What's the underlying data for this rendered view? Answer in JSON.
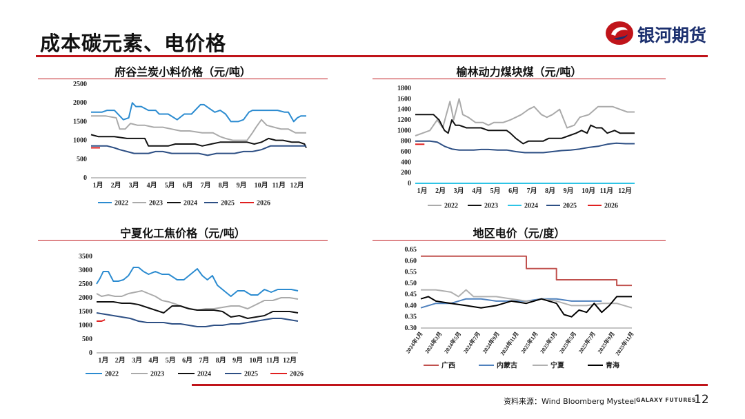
{
  "slide": {
    "title": "成本碳元素、电价格",
    "page_number": "12",
    "source": "资料来源：Wind Bloomberg Mysteel",
    "brand_en": "GALAXY FUTURES"
  },
  "logo": {
    "text": "银河期货"
  },
  "colors": {
    "accent": "#c0141a",
    "brand": "#1b2f6e",
    "s2022": "#2b8bd0",
    "s2023": "#aaaaaa",
    "s2024": "#111111",
    "s2025": "#2d4f84",
    "s2026": "#e02020",
    "s2024_cyan": "#2ec4e6",
    "guangxi": "#c0504d",
    "neimenggu": "#4f81bd",
    "ningxia": "#b0b0b0",
    "qinghai": "#000000"
  },
  "chart_data": [
    {
      "id": "fugu",
      "type": "line",
      "title": "府谷兰炭小料价格（元/吨）",
      "categories": [
        "1月",
        "2月",
        "3月",
        "4月",
        "5月",
        "6月",
        "7月",
        "8月",
        "9月",
        "10月",
        "11月",
        "12月"
      ],
      "ylim": [
        0,
        2500
      ],
      "yticks": [
        0,
        500,
        1000,
        1500,
        2000,
        2500
      ],
      "series": [
        {
          "name": "2022",
          "color_key": "s2022",
          "x": [
            0,
            0.6,
            0.9,
            1.3,
            1.8,
            2.1,
            2.3,
            2.5,
            2.8,
            3.2,
            3.6,
            3.8,
            4.3,
            4.8,
            5.2,
            5.6,
            6.1,
            6.3,
            6.6,
            6.9,
            7.2,
            7.5,
            7.8,
            8.2,
            8.5,
            8.8,
            9.0,
            9.3,
            9.6,
            10.0,
            10.4,
            10.8,
            11.0,
            11.3,
            11.5,
            11.7,
            11.9,
            12.0
          ],
          "values": [
            1750,
            1750,
            1800,
            1800,
            1550,
            1600,
            2000,
            1900,
            1900,
            1800,
            1800,
            1700,
            1700,
            1550,
            1700,
            1700,
            1950,
            1950,
            1850,
            1750,
            1800,
            1700,
            1500,
            1500,
            1550,
            1750,
            1800,
            1800,
            1800,
            1800,
            1800,
            1750,
            1750,
            1500,
            1600,
            1650,
            1650,
            1650
          ]
        },
        {
          "name": "2023",
          "color_key": "s2023",
          "x": [
            0,
            0.8,
            1.4,
            1.6,
            1.9,
            2.2,
            2.6,
            3.0,
            3.5,
            4.0,
            4.5,
            5.0,
            5.5,
            6.2,
            6.8,
            7.2,
            7.5,
            7.9,
            8.3,
            8.7,
            9.0,
            9.2,
            9.5,
            9.8,
            10.2,
            10.6,
            11.0,
            11.4,
            11.7,
            12.0
          ],
          "values": [
            1650,
            1650,
            1600,
            1300,
            1300,
            1450,
            1400,
            1400,
            1350,
            1350,
            1300,
            1250,
            1250,
            1200,
            1200,
            1100,
            1050,
            1000,
            1000,
            1000,
            1200,
            1350,
            1550,
            1400,
            1350,
            1300,
            1300,
            1200,
            1200,
            1200
          ]
        },
        {
          "name": "2024",
          "color_key": "s2024",
          "x": [
            0,
            0.4,
            0.8,
            1.3,
            2.0,
            2.5,
            3.0,
            3.2,
            3.6,
            4.3,
            4.7,
            5.0,
            5.4,
            5.8,
            6.2,
            6.7,
            7.2,
            7.7,
            8.2,
            8.7,
            9.1,
            9.5,
            9.9,
            10.3,
            10.7,
            11.2,
            11.6,
            11.9,
            12.0
          ],
          "values": [
            1150,
            1100,
            1100,
            1100,
            1050,
            1050,
            1050,
            850,
            850,
            850,
            900,
            900,
            900,
            900,
            850,
            900,
            950,
            950,
            950,
            950,
            900,
            950,
            1050,
            1000,
            1000,
            950,
            950,
            900,
            800
          ]
        },
        {
          "name": "2025",
          "color_key": "s2025",
          "x": [
            0,
            0.5,
            0.9,
            1.3,
            1.6,
            2.0,
            2.4,
            2.8,
            3.2,
            3.6,
            4.0,
            4.5,
            5.0,
            5.5,
            6.0,
            6.5,
            7.0,
            7.5,
            8.0,
            8.5,
            9.0,
            9.5,
            10.0,
            10.5,
            11.0,
            11.5,
            11.8,
            12.0
          ],
          "values": [
            850,
            850,
            850,
            800,
            750,
            700,
            650,
            650,
            650,
            700,
            700,
            650,
            650,
            650,
            650,
            600,
            650,
            650,
            650,
            700,
            700,
            750,
            850,
            850,
            850,
            850,
            850,
            850
          ]
        },
        {
          "name": "2026",
          "color_key": "s2026",
          "x": [
            0,
            0.5
          ],
          "values": [
            800,
            800
          ]
        }
      ]
    },
    {
      "id": "yulin",
      "type": "line",
      "title": "榆林动力煤块煤（元/吨）",
      "categories": [
        "1月",
        "2月",
        "3月",
        "4月",
        "5月",
        "6月",
        "7月",
        "8月",
        "9月",
        "10月",
        "11月",
        "12月"
      ],
      "ylim": [
        0,
        1800
      ],
      "yticks": [
        0,
        200,
        400,
        600,
        800,
        1000,
        1200,
        1400,
        1600,
        1800
      ],
      "series": [
        {
          "name": "2022",
          "color_key": "s2022_gray",
          "x": [
            0,
            0.4,
            0.8,
            1.2,
            1.5,
            1.7,
            1.9,
            2.1,
            2.4,
            2.6,
            2.9,
            3.3,
            3.7,
            4.0,
            4.3,
            4.8,
            5.2,
            5.5,
            5.8,
            6.2,
            6.5,
            6.9,
            7.2,
            7.5,
            7.9,
            8.3,
            8.7,
            9.0,
            9.5,
            10.0,
            10.4,
            10.8,
            11.2,
            11.6,
            12.0
          ],
          "values": [
            900,
            950,
            1000,
            1200,
            1050,
            1300,
            1550,
            1200,
            1600,
            1300,
            1250,
            1150,
            1150,
            1100,
            1150,
            1150,
            1200,
            1250,
            1300,
            1400,
            1450,
            1300,
            1250,
            1300,
            1400,
            1050,
            1100,
            1250,
            1300,
            1450,
            1450,
            1450,
            1400,
            1350,
            1350
          ]
        },
        {
          "name": "2023",
          "color_key": "s2024",
          "x": [
            0,
            0.4,
            0.8,
            1.0,
            1.3,
            1.6,
            1.8,
            2.0,
            2.2,
            2.4,
            2.8,
            3.2,
            3.6,
            4.0,
            4.5,
            5.0,
            5.2,
            5.5,
            5.9,
            6.2,
            6.5,
            6.8,
            7.0,
            7.3,
            7.6,
            8.0,
            8.4,
            8.8,
            9.1,
            9.4,
            9.6,
            9.9,
            10.2,
            10.5,
            10.9,
            11.2,
            11.6,
            12.0
          ],
          "values": [
            1300,
            1300,
            1300,
            1300,
            1200,
            1000,
            950,
            1200,
            1100,
            1100,
            1050,
            1050,
            1050,
            1000,
            1000,
            1000,
            950,
            850,
            750,
            800,
            800,
            800,
            800,
            850,
            850,
            850,
            900,
            950,
            1000,
            950,
            1100,
            1050,
            1050,
            950,
            1000,
            950,
            950,
            950
          ]
        },
        {
          "name": "2024",
          "color_key": "s2024_cyan",
          "x": [
            0,
            12
          ],
          "values": [
            0,
            0
          ]
        },
        {
          "name": "2025",
          "color_key": "s2025",
          "x": [
            0,
            0.4,
            0.8,
            1.2,
            1.6,
            2.0,
            2.4,
            2.8,
            3.2,
            3.6,
            4.0,
            4.5,
            5.0,
            5.5,
            6.0,
            6.5,
            7.0,
            7.5,
            8.0,
            8.5,
            9.0,
            9.5,
            10.0,
            10.5,
            11.0,
            11.5,
            12.0
          ],
          "values": [
            800,
            800,
            800,
            780,
            700,
            650,
            630,
            630,
            630,
            640,
            640,
            630,
            630,
            600,
            580,
            580,
            580,
            600,
            620,
            630,
            650,
            680,
            700,
            740,
            760,
            750,
            750
          ]
        },
        {
          "name": "2026",
          "color_key": "s2026",
          "x": [
            0,
            0.5
          ],
          "values": [
            740,
            740
          ]
        }
      ]
    },
    {
      "id": "ningxia_coke",
      "type": "line",
      "title": "宁夏化工焦价格（元/吨）",
      "categories": [
        "1月",
        "2月",
        "3月",
        "4月",
        "5月",
        "6月",
        "7月",
        "8月",
        "9月",
        "10月",
        "11月",
        "12月"
      ],
      "ylim": [
        0,
        3500
      ],
      "yticks": [
        0,
        500,
        1000,
        1500,
        2000,
        2500,
        3000,
        3500
      ],
      "series": [
        {
          "name": "2022",
          "color_key": "s2022",
          "x": [
            0,
            0.2,
            0.4,
            0.7,
            1.0,
            1.3,
            1.6,
            1.9,
            2.2,
            2.5,
            2.8,
            3.1,
            3.5,
            3.9,
            4.3,
            4.8,
            5.2,
            5.6,
            6.0,
            6.3,
            6.6,
            6.9,
            7.2,
            7.6,
            8.0,
            8.4,
            8.8,
            9.2,
            9.6,
            10.0,
            10.4,
            10.8,
            11.2,
            11.6,
            12.0
          ],
          "values": [
            2500,
            2700,
            2950,
            2950,
            2600,
            2600,
            2650,
            2800,
            3100,
            3100,
            2950,
            2850,
            2950,
            2850,
            2850,
            2650,
            2650,
            2850,
            3050,
            2800,
            2650,
            2800,
            2450,
            2250,
            2050,
            2250,
            2250,
            2100,
            2100,
            2300,
            2200,
            2300,
            2300,
            2300,
            2250
          ]
        },
        {
          "name": "2023",
          "color_key": "s2023",
          "x": [
            0,
            0.3,
            0.7,
            1.1,
            1.5,
            1.9,
            2.3,
            2.7,
            3.1,
            3.5,
            3.9,
            4.3,
            4.8,
            5.2,
            5.6,
            6.0,
            6.5,
            7.0,
            7.5,
            8.0,
            8.5,
            9.0,
            9.5,
            10.0,
            10.5,
            11.0,
            11.5,
            12.0
          ],
          "values": [
            2150,
            2050,
            2100,
            2050,
            2050,
            2150,
            2200,
            2250,
            2150,
            2050,
            1900,
            1850,
            1750,
            1650,
            1600,
            1550,
            1600,
            1600,
            1650,
            1700,
            1700,
            1600,
            1750,
            1900,
            1900,
            2000,
            2000,
            1950
          ]
        },
        {
          "name": "2024",
          "color_key": "s2024",
          "x": [
            0,
            0.5,
            1.0,
            1.5,
            2.0,
            2.5,
            3.0,
            3.5,
            4.0,
            4.5,
            5.0,
            5.5,
            6.0,
            6.5,
            7.0,
            7.5,
            8.0,
            8.5,
            9.0,
            9.5,
            10.0,
            10.5,
            11.0,
            11.5,
            12.0
          ],
          "values": [
            1850,
            1850,
            1850,
            1800,
            1800,
            1750,
            1650,
            1550,
            1450,
            1700,
            1700,
            1600,
            1550,
            1550,
            1550,
            1500,
            1300,
            1350,
            1250,
            1300,
            1350,
            1500,
            1500,
            1500,
            1450
          ]
        },
        {
          "name": "2025",
          "color_key": "s2025",
          "x": [
            0,
            0.5,
            1.0,
            1.5,
            2.0,
            2.5,
            3.0,
            3.5,
            4.0,
            4.5,
            5.0,
            5.5,
            6.0,
            6.5,
            7.0,
            7.5,
            8.0,
            8.5,
            9.0,
            9.5,
            10.0,
            10.5,
            11.0,
            11.5,
            12.0
          ],
          "values": [
            1450,
            1400,
            1350,
            1300,
            1250,
            1150,
            1100,
            1100,
            1100,
            1050,
            1050,
            1000,
            950,
            950,
            1000,
            1000,
            1050,
            1050,
            1100,
            1150,
            1200,
            1250,
            1250,
            1200,
            1150
          ]
        },
        {
          "name": "2026",
          "color_key": "s2026",
          "x": [
            0,
            0.3,
            0.5
          ],
          "values": [
            1150,
            1150,
            1200
          ]
        }
      ]
    },
    {
      "id": "regional_power",
      "type": "line",
      "title": "地区电价（元/度）",
      "categories": [
        "2024年1月",
        "2024年3月",
        "2024年5月",
        "2024年7月",
        "2024年9月",
        "2024年11月",
        "2025年1月",
        "2025年3月",
        "2025年5月",
        "2025年7月",
        "2025年9月",
        "2025年11月"
      ],
      "ylim": [
        0.3,
        0.65
      ],
      "yticks": [
        0.3,
        0.35,
        0.4,
        0.45,
        0.5,
        0.55,
        0.6,
        0.65
      ],
      "series": [
        {
          "name": "广西",
          "color_key": "guangxi",
          "x": [
            0,
            7,
            7,
            9,
            9,
            13,
            13,
            14
          ],
          "values": [
            0.62,
            0.62,
            0.565,
            0.565,
            0.515,
            0.515,
            0.49,
            0.49
          ]
        },
        {
          "name": "内蒙古",
          "color_key": "neimenggu",
          "x": [
            0,
            1,
            1.5,
            2,
            3,
            4,
            5,
            6,
            7,
            8,
            9,
            10,
            11,
            12
          ],
          "values": [
            0.39,
            0.41,
            0.41,
            0.41,
            0.43,
            0.43,
            0.42,
            0.42,
            0.42,
            0.43,
            0.43,
            0.42,
            0.42,
            0.42
          ]
        },
        {
          "name": "宁夏",
          "color_key": "ningxia",
          "x": [
            0,
            1,
            2,
            2.5,
            3,
            3.5,
            4,
            5,
            6,
            7,
            7.5,
            8,
            9,
            10,
            11,
            12,
            13,
            14
          ],
          "values": [
            0.47,
            0.47,
            0.46,
            0.44,
            0.47,
            0.44,
            0.44,
            0.44,
            0.43,
            0.42,
            0.42,
            0.43,
            0.42,
            0.4,
            0.4,
            0.41,
            0.41,
            0.39
          ]
        },
        {
          "name": "青海",
          "color_key": "qinghai",
          "x": [
            0,
            0.5,
            1,
            2,
            3,
            4,
            5,
            6,
            7,
            8,
            9,
            9.5,
            10,
            10.5,
            11,
            11.5,
            12,
            12.5,
            13,
            14
          ],
          "values": [
            0.43,
            0.44,
            0.42,
            0.41,
            0.4,
            0.39,
            0.4,
            0.42,
            0.41,
            0.43,
            0.41,
            0.36,
            0.35,
            0.38,
            0.37,
            0.41,
            0.37,
            0.4,
            0.44,
            0.44
          ]
        }
      ]
    }
  ]
}
